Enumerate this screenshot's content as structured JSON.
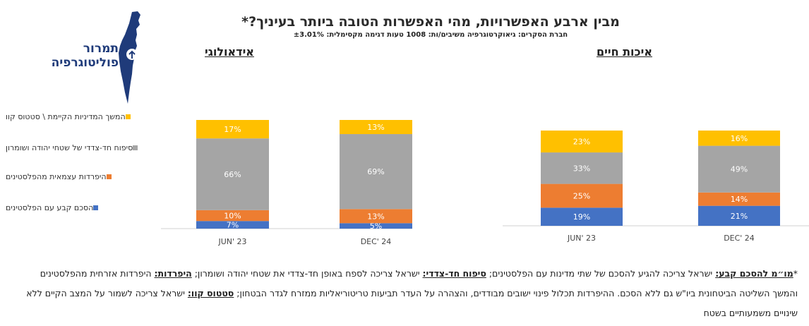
{
  "title": "מבין ארבע האפשרויות, מהי האפשרות הטובה ביותר בעיניך?*",
  "subtitle": "חברת הסקרים: גיאוקרטוגרפיה משיבים/ות: 1008 טעות דגימה מקסימלית: ±3.01%",
  "logo": {
    "line1": "תמרור",
    "line2": "פוליטוגרפיה"
  },
  "colors": {
    "settlement": "#4472C4",
    "separation": "#ED7D31",
    "annexation": "#A5A5A5",
    "status_quo": "#FFC000"
  },
  "legend": [
    {
      "key": "status_quo",
      "label": "המשך המדיניות הקיימת \\ סטטוס קוו"
    },
    {
      "key": "annexation",
      "label": "סיפוח חד-צדדי של שטחי יהודה ושומרון"
    },
    {
      "key": "separation",
      "label": "היפרדות עצמאית מהפלסטינים"
    },
    {
      "key": "settlement",
      "label": "הסכם קבע עם הפלסטינים"
    }
  ],
  "chart_data": [
    {
      "type": "bar",
      "stacked": true,
      "title": "אידאולוגי",
      "categories": [
        "JUN' 23",
        "DEC' 24"
      ],
      "series": [
        {
          "name": "הסכם קבע עם הפלסטינים",
          "key": "settlement",
          "values": [
            7,
            5
          ],
          "labels": [
            "7%",
            "5%"
          ]
        },
        {
          "name": "היפרדות עצמאית מהפלסטינים",
          "key": "separation",
          "values": [
            10,
            13
          ],
          "labels": [
            "10%",
            "13%"
          ]
        },
        {
          "name": "סיפוח חד-צדדי של שטחי יהודה ושומרון",
          "key": "annexation",
          "values": [
            66,
            69
          ],
          "labels": [
            "66%",
            "69%"
          ]
        },
        {
          "name": "המשך המדיניות הקיימת \\ סטטוס קוו",
          "key": "status_quo",
          "values": [
            17,
            13
          ],
          "labels": [
            "17%",
            "13%"
          ]
        }
      ]
    },
    {
      "type": "bar",
      "stacked": true,
      "title": "איכות חיים",
      "categories": [
        "JUN' 23",
        "DEC' 24"
      ],
      "series": [
        {
          "name": "הסכם קבע עם הפלסטינים",
          "key": "settlement",
          "values": [
            19,
            21
          ],
          "labels": [
            "19%",
            "21%"
          ]
        },
        {
          "name": "היפרדות עצמאית מהפלסטינים",
          "key": "separation",
          "values": [
            25,
            14
          ],
          "labels": [
            "25%",
            "14%"
          ]
        },
        {
          "name": "סיפוח חד-צדדי של שטחי יהודה ושומרון",
          "key": "annexation",
          "values": [
            33,
            49
          ],
          "labels": [
            "33%",
            "49%"
          ]
        },
        {
          "name": "המשך המדיניות הקיימת \\ סטטוס קוו",
          "key": "status_quo",
          "values": [
            23,
            16
          ],
          "labels": [
            "23%",
            "16%"
          ]
        }
      ]
    }
  ],
  "footnote": {
    "star": "*",
    "t1_label": "מו״מ להסכם קבע:",
    "t1_text": " ישראל צריכה להגיע להסכם של שתי מדינות עם הפלסטינים; ",
    "t2_label": "סיפוח חד-צדדי:",
    "t2_text": " ישראל צריכה לספח באופן חד-צדדי את שטחי יהודה ושומרון; ",
    "t3_label": "היפרדות:",
    "t3_text": " היפרדות אזרחית מהפלסטינים והמשך השליטה הביטחונית ביו\"ש גם ללא הסכם. ההיפרדות תכלול פינוי ישובים מבודדים, והצהרה על העדר תביעות טריטוריאליות ממזרח לגדר הבטחון; ",
    "t4_label": "סטטוס קוו:",
    "t4_text": " ישראל צריכה לשמור על המצב הקיים ללא שינויים משמעותיים בשטח"
  }
}
